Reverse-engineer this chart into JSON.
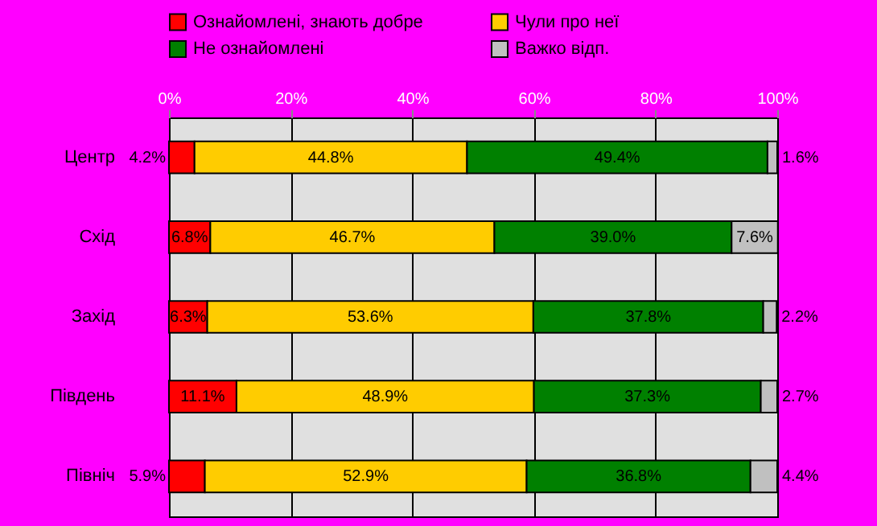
{
  "chart_data": {
    "type": "bar",
    "orientation": "horizontal",
    "stacked": true,
    "categories": [
      "Центр",
      "Схід",
      "Захід",
      "Південь",
      "Північ"
    ],
    "series": [
      {
        "name": "Ознайомлені, знають добре",
        "color": "#ff0000",
        "values": [
          4.2,
          6.8,
          6.3,
          11.1,
          5.9
        ],
        "value_labels": [
          "4.2%",
          "6.8%",
          "6.3%",
          "11.1%",
          "5.9%"
        ]
      },
      {
        "name": "Чули про неї",
        "color": "#ffcc00",
        "values": [
          44.8,
          46.7,
          53.6,
          48.9,
          52.9
        ],
        "value_labels": [
          "44.8%",
          "46.7%",
          "53.6%",
          "48.9%",
          "52.9%"
        ]
      },
      {
        "name": "Не ознайомлені",
        "color": "#008000",
        "values": [
          49.4,
          39.0,
          37.8,
          37.3,
          36.8
        ],
        "value_labels": [
          "49.4%",
          "39.0%",
          "37.8%",
          "37.3%",
          "36.8%"
        ]
      },
      {
        "name": "Важко відп.",
        "color": "#c0c0c0",
        "values": [
          1.6,
          7.6,
          2.2,
          2.7,
          4.4
        ],
        "value_labels": [
          "1.6%",
          "7.6%",
          "2.2%",
          "2.7%",
          "4.4%"
        ]
      }
    ],
    "xlim": [
      0,
      100
    ],
    "xticks": [
      {
        "value": 0,
        "label": "0%"
      },
      {
        "value": 20,
        "label": "20%"
      },
      {
        "value": 40,
        "label": "40%"
      },
      {
        "value": 60,
        "label": "60%"
      },
      {
        "value": 80,
        "label": "80%"
      },
      {
        "value": 100,
        "label": "100%"
      }
    ],
    "grid": "x",
    "legend": "top"
  }
}
